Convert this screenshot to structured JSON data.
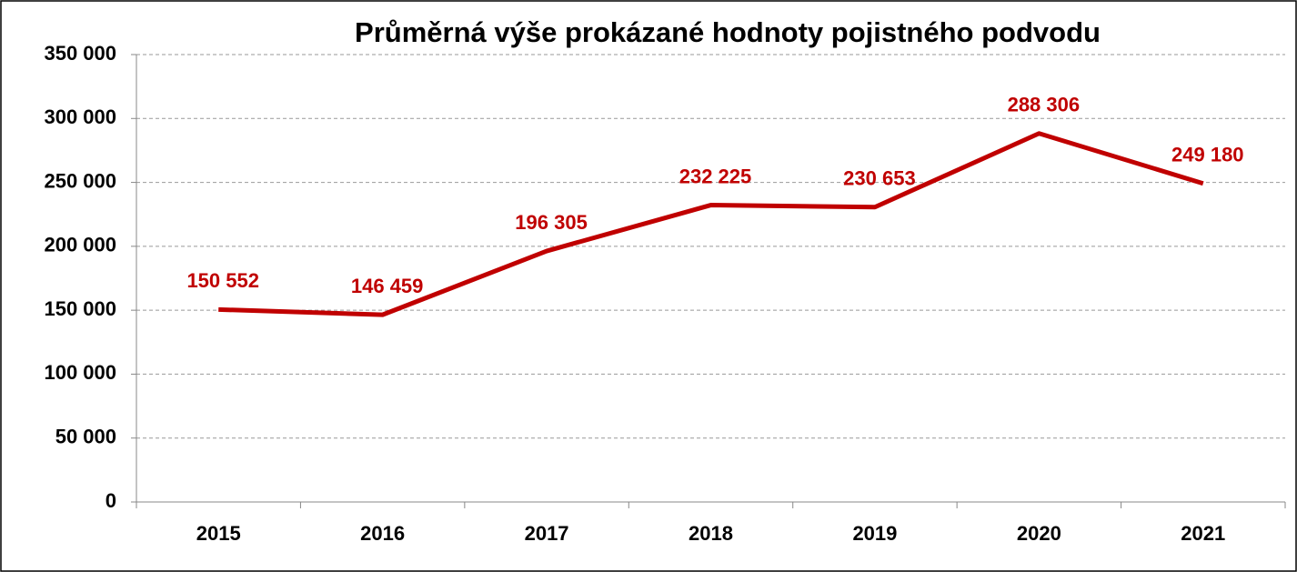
{
  "chart_data": {
    "type": "line",
    "title": "Průměrná výše prokázané hodnoty pojistného podvodu",
    "categories": [
      "2015",
      "2016",
      "2017",
      "2018",
      "2019",
      "2020",
      "2021"
    ],
    "series": [
      {
        "name": "Průměrná výše",
        "color": "#c00000",
        "values": [
          150552,
          146459,
          196305,
          232225,
          230653,
          288306,
          249180
        ],
        "value_labels": [
          "150 552",
          "146 459",
          "196 305",
          "232 225",
          "230 653",
          "288 306",
          "249 180"
        ]
      }
    ],
    "ylim": [
      0,
      350000
    ],
    "yticks": [
      {
        "value": 0,
        "label": "0"
      },
      {
        "value": 50000,
        "label": "50 000"
      },
      {
        "value": 100000,
        "label": "100 000"
      },
      {
        "value": 150000,
        "label": "150 000"
      },
      {
        "value": 200000,
        "label": "200 000"
      },
      {
        "value": 250000,
        "label": "250 000"
      },
      {
        "value": 300000,
        "label": "300 000"
      },
      {
        "value": 350000,
        "label": "350 000"
      }
    ],
    "grid": true
  }
}
